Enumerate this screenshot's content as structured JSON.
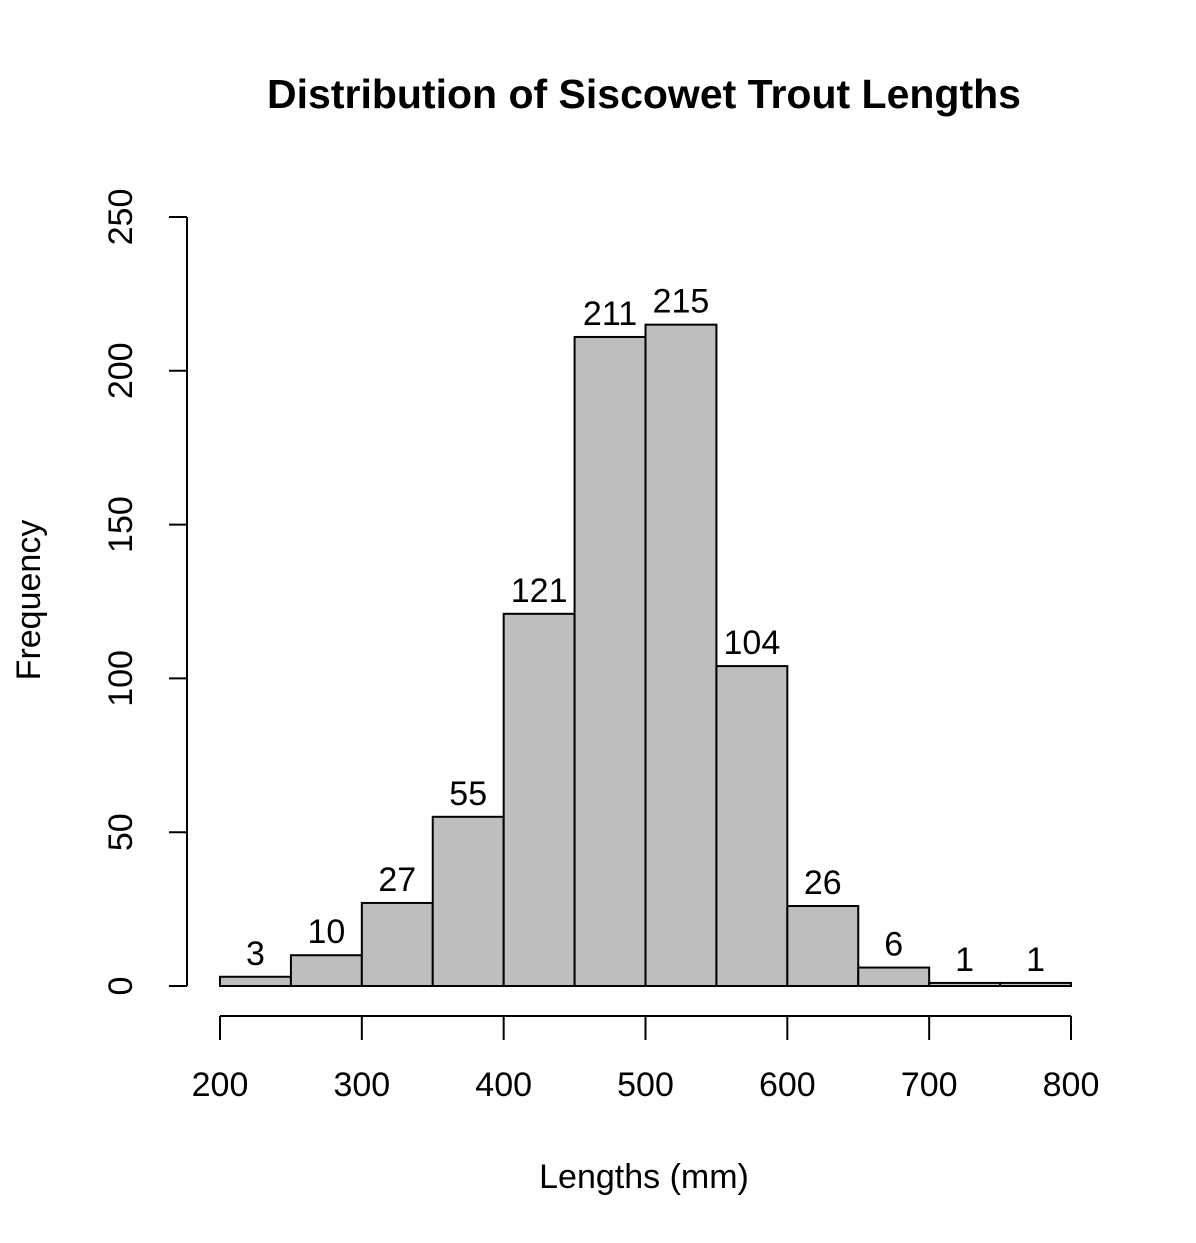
{
  "chart_data": {
    "type": "bar",
    "title": "Distribution of Siscowet Trout Lengths",
    "xlabel": "Lengths (mm)",
    "ylabel": "Frequency",
    "bins": [
      {
        "start": 200,
        "end": 250,
        "count": 3
      },
      {
        "start": 250,
        "end": 300,
        "count": 10
      },
      {
        "start": 300,
        "end": 350,
        "count": 27
      },
      {
        "start": 350,
        "end": 400,
        "count": 55
      },
      {
        "start": 400,
        "end": 450,
        "count": 121
      },
      {
        "start": 450,
        "end": 500,
        "count": 211
      },
      {
        "start": 500,
        "end": 550,
        "count": 215
      },
      {
        "start": 550,
        "end": 600,
        "count": 104
      },
      {
        "start": 600,
        "end": 650,
        "count": 26
      },
      {
        "start": 650,
        "end": 700,
        "count": 6
      },
      {
        "start": 700,
        "end": 750,
        "count": 1
      },
      {
        "start": 750,
        "end": 800,
        "count": 1
      }
    ],
    "bar_labels": [
      "3",
      "10",
      "27",
      "55",
      "121",
      "211",
      "215",
      "104",
      "26",
      "6",
      "1",
      "1"
    ],
    "xlim": [
      200,
      800
    ],
    "ylim": [
      0,
      250
    ],
    "x_ticks": [
      200,
      300,
      400,
      500,
      600,
      700,
      800
    ],
    "x_tick_labels": [
      "200",
      "300",
      "400",
      "500",
      "600",
      "700",
      "800"
    ],
    "y_ticks": [
      0,
      50,
      100,
      150,
      200,
      250
    ],
    "y_tick_labels": [
      "0",
      "50",
      "100",
      "150",
      "200",
      "250"
    ],
    "grid": false,
    "legend": "none",
    "colors": {
      "bar_fill": "#bebebe",
      "bar_stroke": "#000000",
      "axis": "#000000",
      "text": "#000000",
      "background": "#ffffff"
    }
  }
}
